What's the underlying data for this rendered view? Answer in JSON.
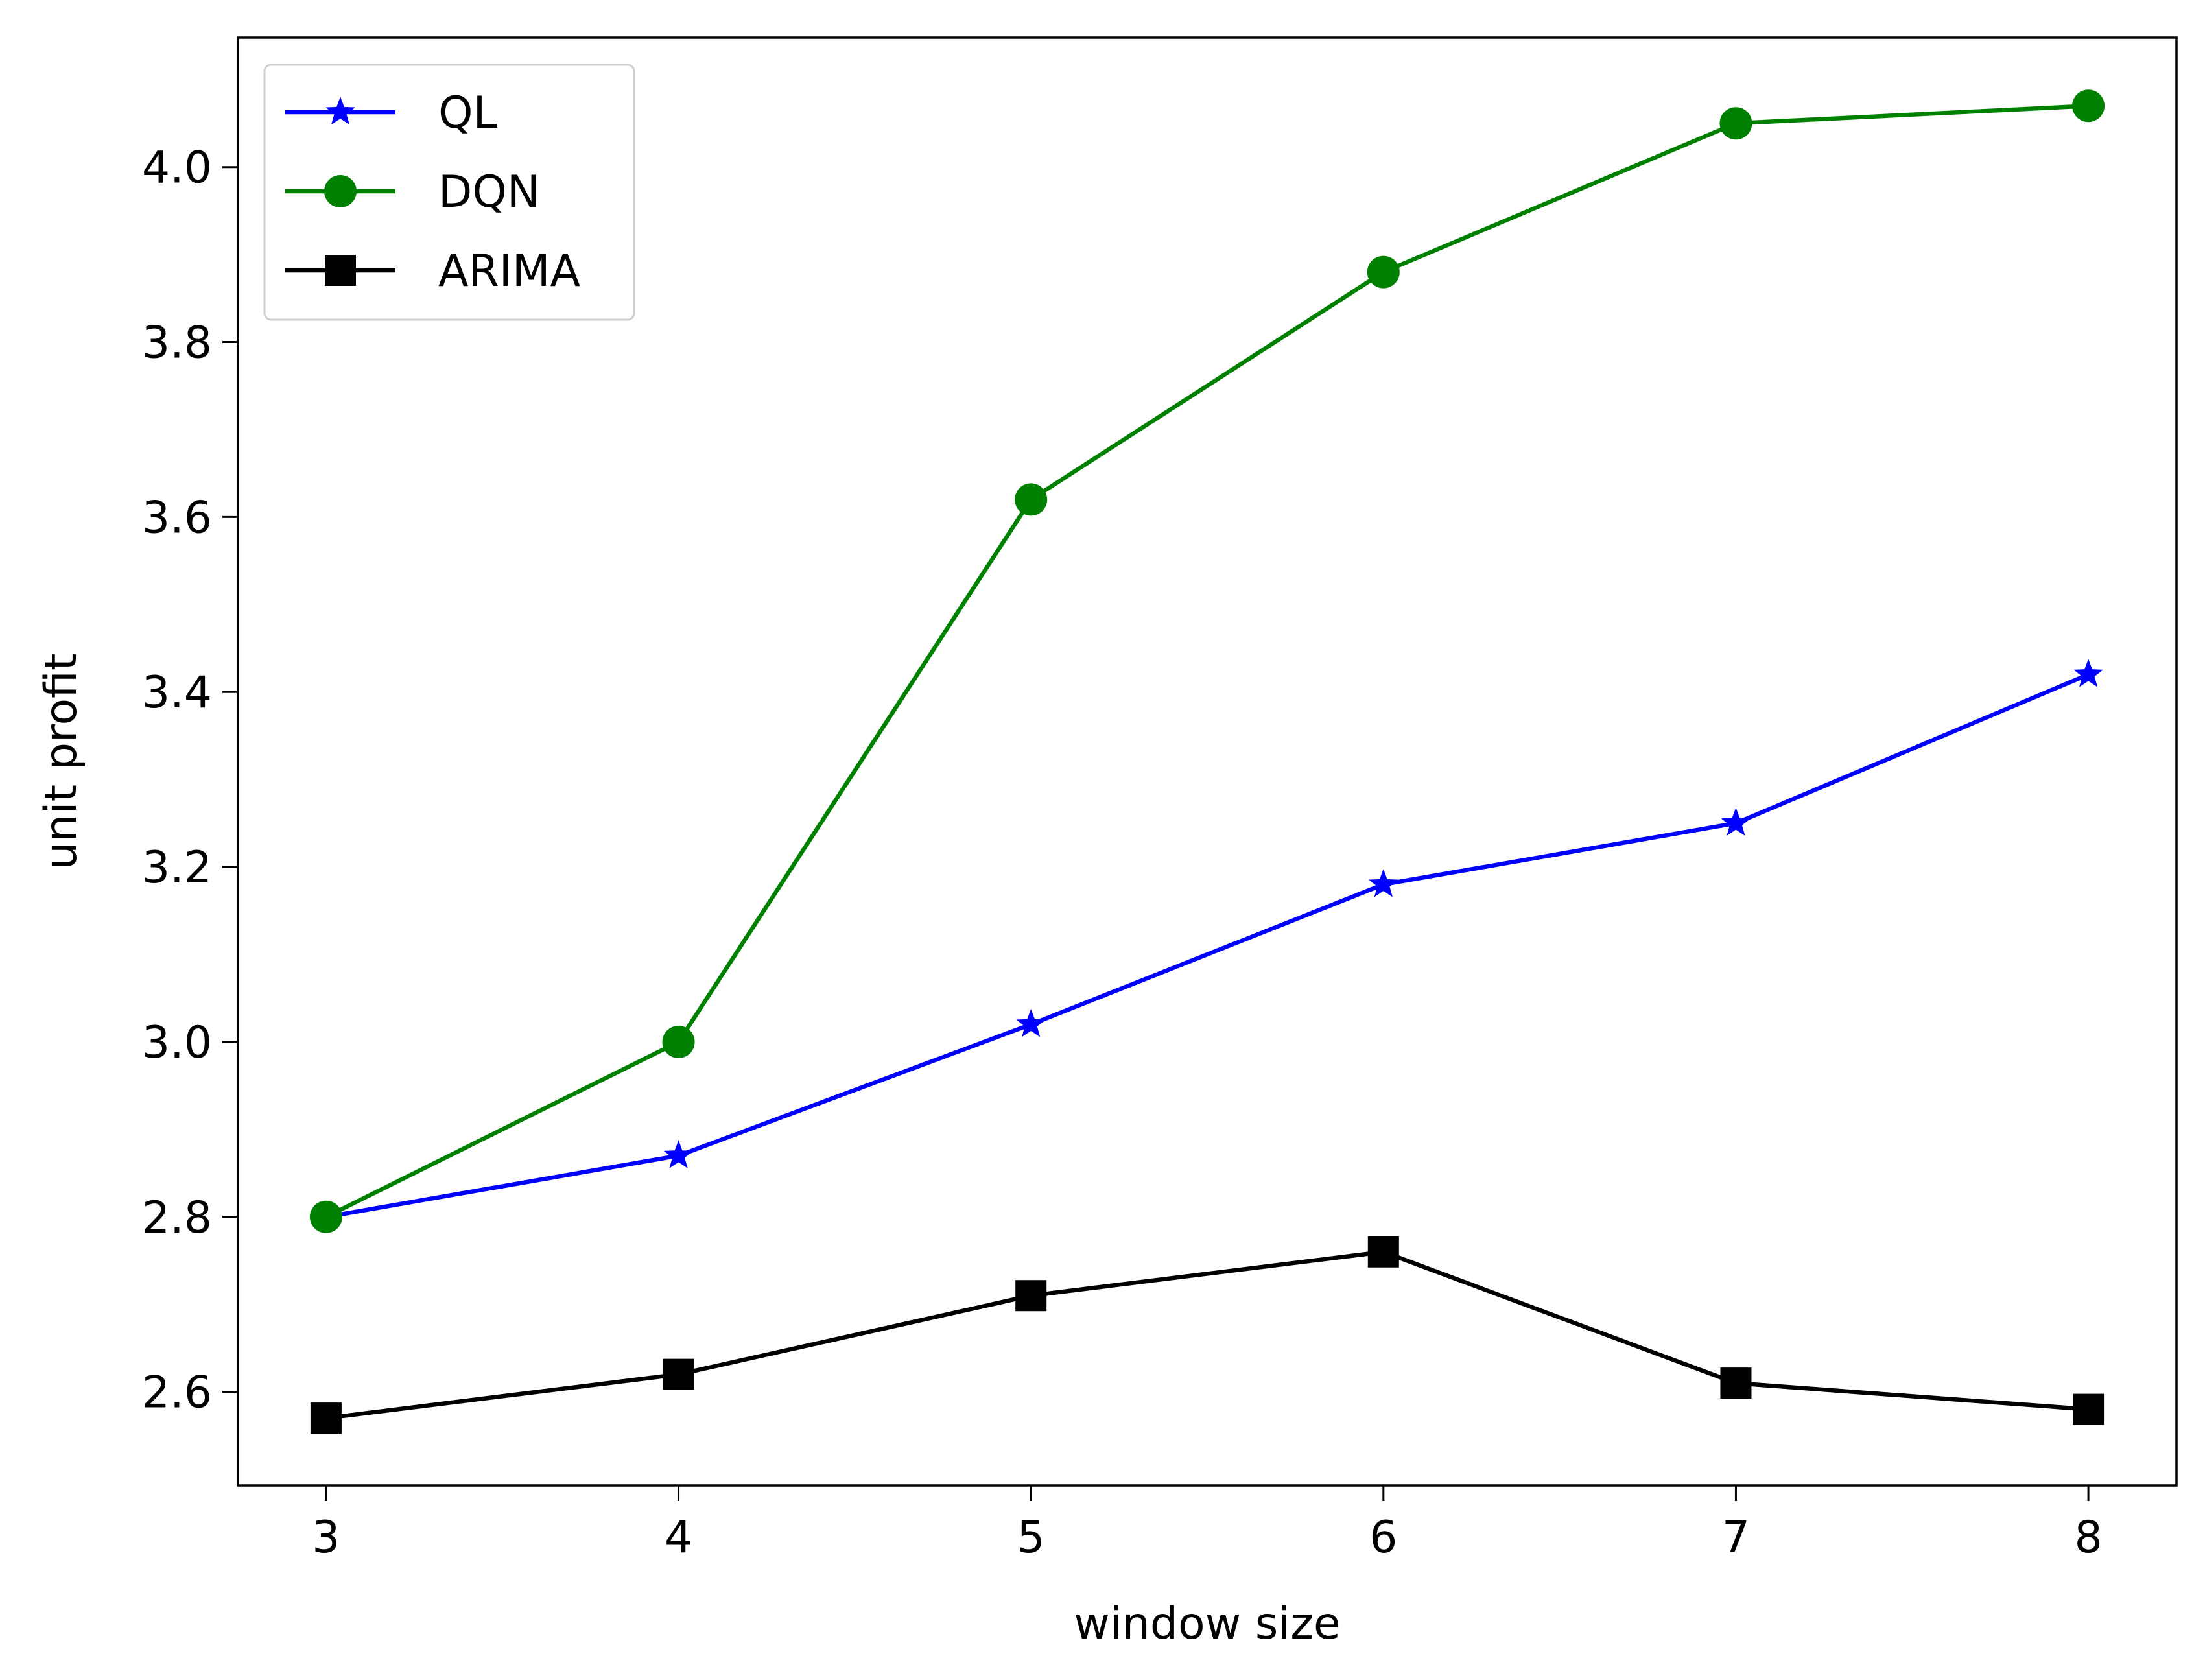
{
  "chart_data": {
    "type": "line",
    "xlabel": "window size",
    "ylabel": "unit profit",
    "x": [
      3,
      4,
      5,
      6,
      7,
      8
    ],
    "xticks": [
      "3",
      "4",
      "5",
      "6",
      "7",
      "8"
    ],
    "yticks": [
      "2.6",
      "2.8",
      "3.0",
      "3.2",
      "3.4",
      "3.6",
      "3.8",
      "4.0"
    ],
    "ytick_values": [
      2.6,
      2.8,
      3.0,
      3.2,
      3.4,
      3.6,
      3.8,
      4.0
    ],
    "xlim": [
      2.75,
      8.25
    ],
    "ylim": [
      2.493,
      4.148
    ],
    "grid": false,
    "legend_position": "upper-left",
    "series": [
      {
        "name": "QL",
        "color": "#0000ff",
        "marker": "star",
        "values": [
          2.8,
          2.87,
          3.02,
          3.18,
          3.25,
          3.42
        ]
      },
      {
        "name": "DQN",
        "color": "#008000",
        "marker": "circle",
        "values": [
          2.8,
          3.0,
          3.62,
          3.88,
          4.05,
          4.07
        ]
      },
      {
        "name": "ARIMA",
        "color": "#000000",
        "marker": "square",
        "values": [
          2.57,
          2.62,
          2.71,
          2.76,
          2.61,
          2.58
        ]
      }
    ]
  }
}
